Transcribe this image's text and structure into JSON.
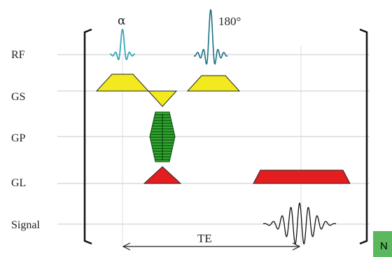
{
  "rows": {
    "rf": "RF",
    "gs": "GS",
    "gp": "GP",
    "gl": "GL",
    "signal": "Signal"
  },
  "pulses": {
    "alpha": "α",
    "refocus": "180°"
  },
  "te_label": "TE",
  "corner_tag": "N",
  "colors": {
    "rf_pulse": "#3aa6b9",
    "slice_select": "#f2ea1e",
    "phase_encode": "#2fa82f",
    "readout": "#e41e1e",
    "baseline": "#c8c8c8",
    "corner_tag_bg": "#5cb85c"
  }
}
